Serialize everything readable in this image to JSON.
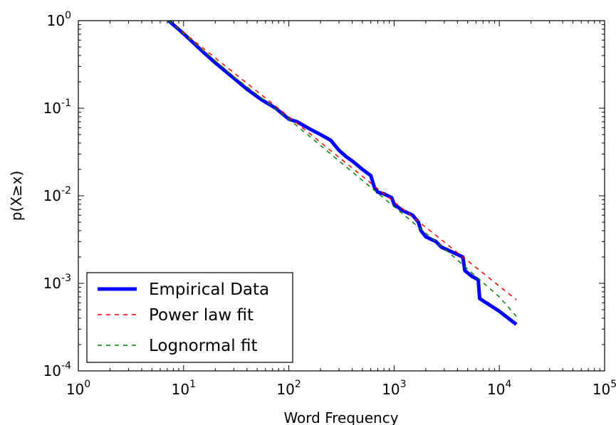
{
  "chart_data": {
    "type": "line",
    "title": "",
    "xlabel": "Word Frequency",
    "ylabel": "p(X≥x)",
    "xscale": "log",
    "yscale": "log",
    "xlim": [
      1,
      100000
    ],
    "ylim": [
      0.0001,
      1
    ],
    "grid": false,
    "legend_position": "lower-left",
    "x_ticks": [
      {
        "value": 1,
        "base": "10",
        "exp": "0"
      },
      {
        "value": 10,
        "base": "10",
        "exp": "1"
      },
      {
        "value": 100,
        "base": "10",
        "exp": "2"
      },
      {
        "value": 1000,
        "base": "10",
        "exp": "3"
      },
      {
        "value": 10000,
        "base": "10",
        "exp": "4"
      },
      {
        "value": 100000,
        "base": "10",
        "exp": "5"
      }
    ],
    "y_ticks": [
      {
        "value": 1,
        "base": "10",
        "exp": "0"
      },
      {
        "value": 0.1,
        "base": "10",
        "exp": "-1"
      },
      {
        "value": 0.01,
        "base": "10",
        "exp": "-2"
      },
      {
        "value": 0.001,
        "base": "10",
        "exp": "-3"
      },
      {
        "value": 0.0001,
        "base": "10",
        "exp": "-4"
      }
    ],
    "series": [
      {
        "name": "Empirical Data",
        "color": "#0000ff",
        "style": "solid",
        "points": [
          [
            7.2,
            1.0
          ],
          [
            10,
            0.71
          ],
          [
            15,
            0.45
          ],
          [
            20,
            0.33
          ],
          [
            30,
            0.22
          ],
          [
            40,
            0.165
          ],
          [
            55,
            0.125
          ],
          [
            75,
            0.1
          ],
          [
            100,
            0.075
          ],
          [
            120,
            0.07
          ],
          [
            150,
            0.06
          ],
          [
            200,
            0.05
          ],
          [
            250,
            0.043
          ],
          [
            300,
            0.033
          ],
          [
            350,
            0.028
          ],
          [
            400,
            0.025
          ],
          [
            500,
            0.02
          ],
          [
            600,
            0.017
          ],
          [
            650,
            0.0125
          ],
          [
            700,
            0.011
          ],
          [
            800,
            0.0105
          ],
          [
            950,
            0.0095
          ],
          [
            1000,
            0.008
          ],
          [
            1200,
            0.0068
          ],
          [
            1500,
            0.006
          ],
          [
            1700,
            0.005
          ],
          [
            1800,
            0.004
          ],
          [
            2000,
            0.0034
          ],
          [
            2500,
            0.003
          ],
          [
            2800,
            0.0026
          ],
          [
            3500,
            0.0023
          ],
          [
            4500,
            0.002
          ],
          [
            4700,
            0.0014
          ],
          [
            5500,
            0.0012
          ],
          [
            6300,
            0.0011
          ],
          [
            6500,
            0.00067
          ],
          [
            10000,
            0.00048
          ],
          [
            14500,
            0.00034
          ]
        ]
      },
      {
        "name": "Power law fit",
        "color": "#ff0000",
        "style": "dashed",
        "points": [
          [
            7.2,
            1.0
          ],
          [
            100,
            0.08
          ],
          [
            1000,
            0.0085
          ],
          [
            14500,
            0.00065
          ]
        ]
      },
      {
        "name": "Lognormal fit",
        "color": "#008000",
        "style": "dashed",
        "points": [
          [
            7.2,
            1.0
          ],
          [
            30,
            0.23
          ],
          [
            100,
            0.075
          ],
          [
            300,
            0.025
          ],
          [
            1000,
            0.0075
          ],
          [
            3000,
            0.0025
          ],
          [
            10000,
            0.0007
          ],
          [
            14500,
            0.00042
          ]
        ]
      }
    ]
  }
}
